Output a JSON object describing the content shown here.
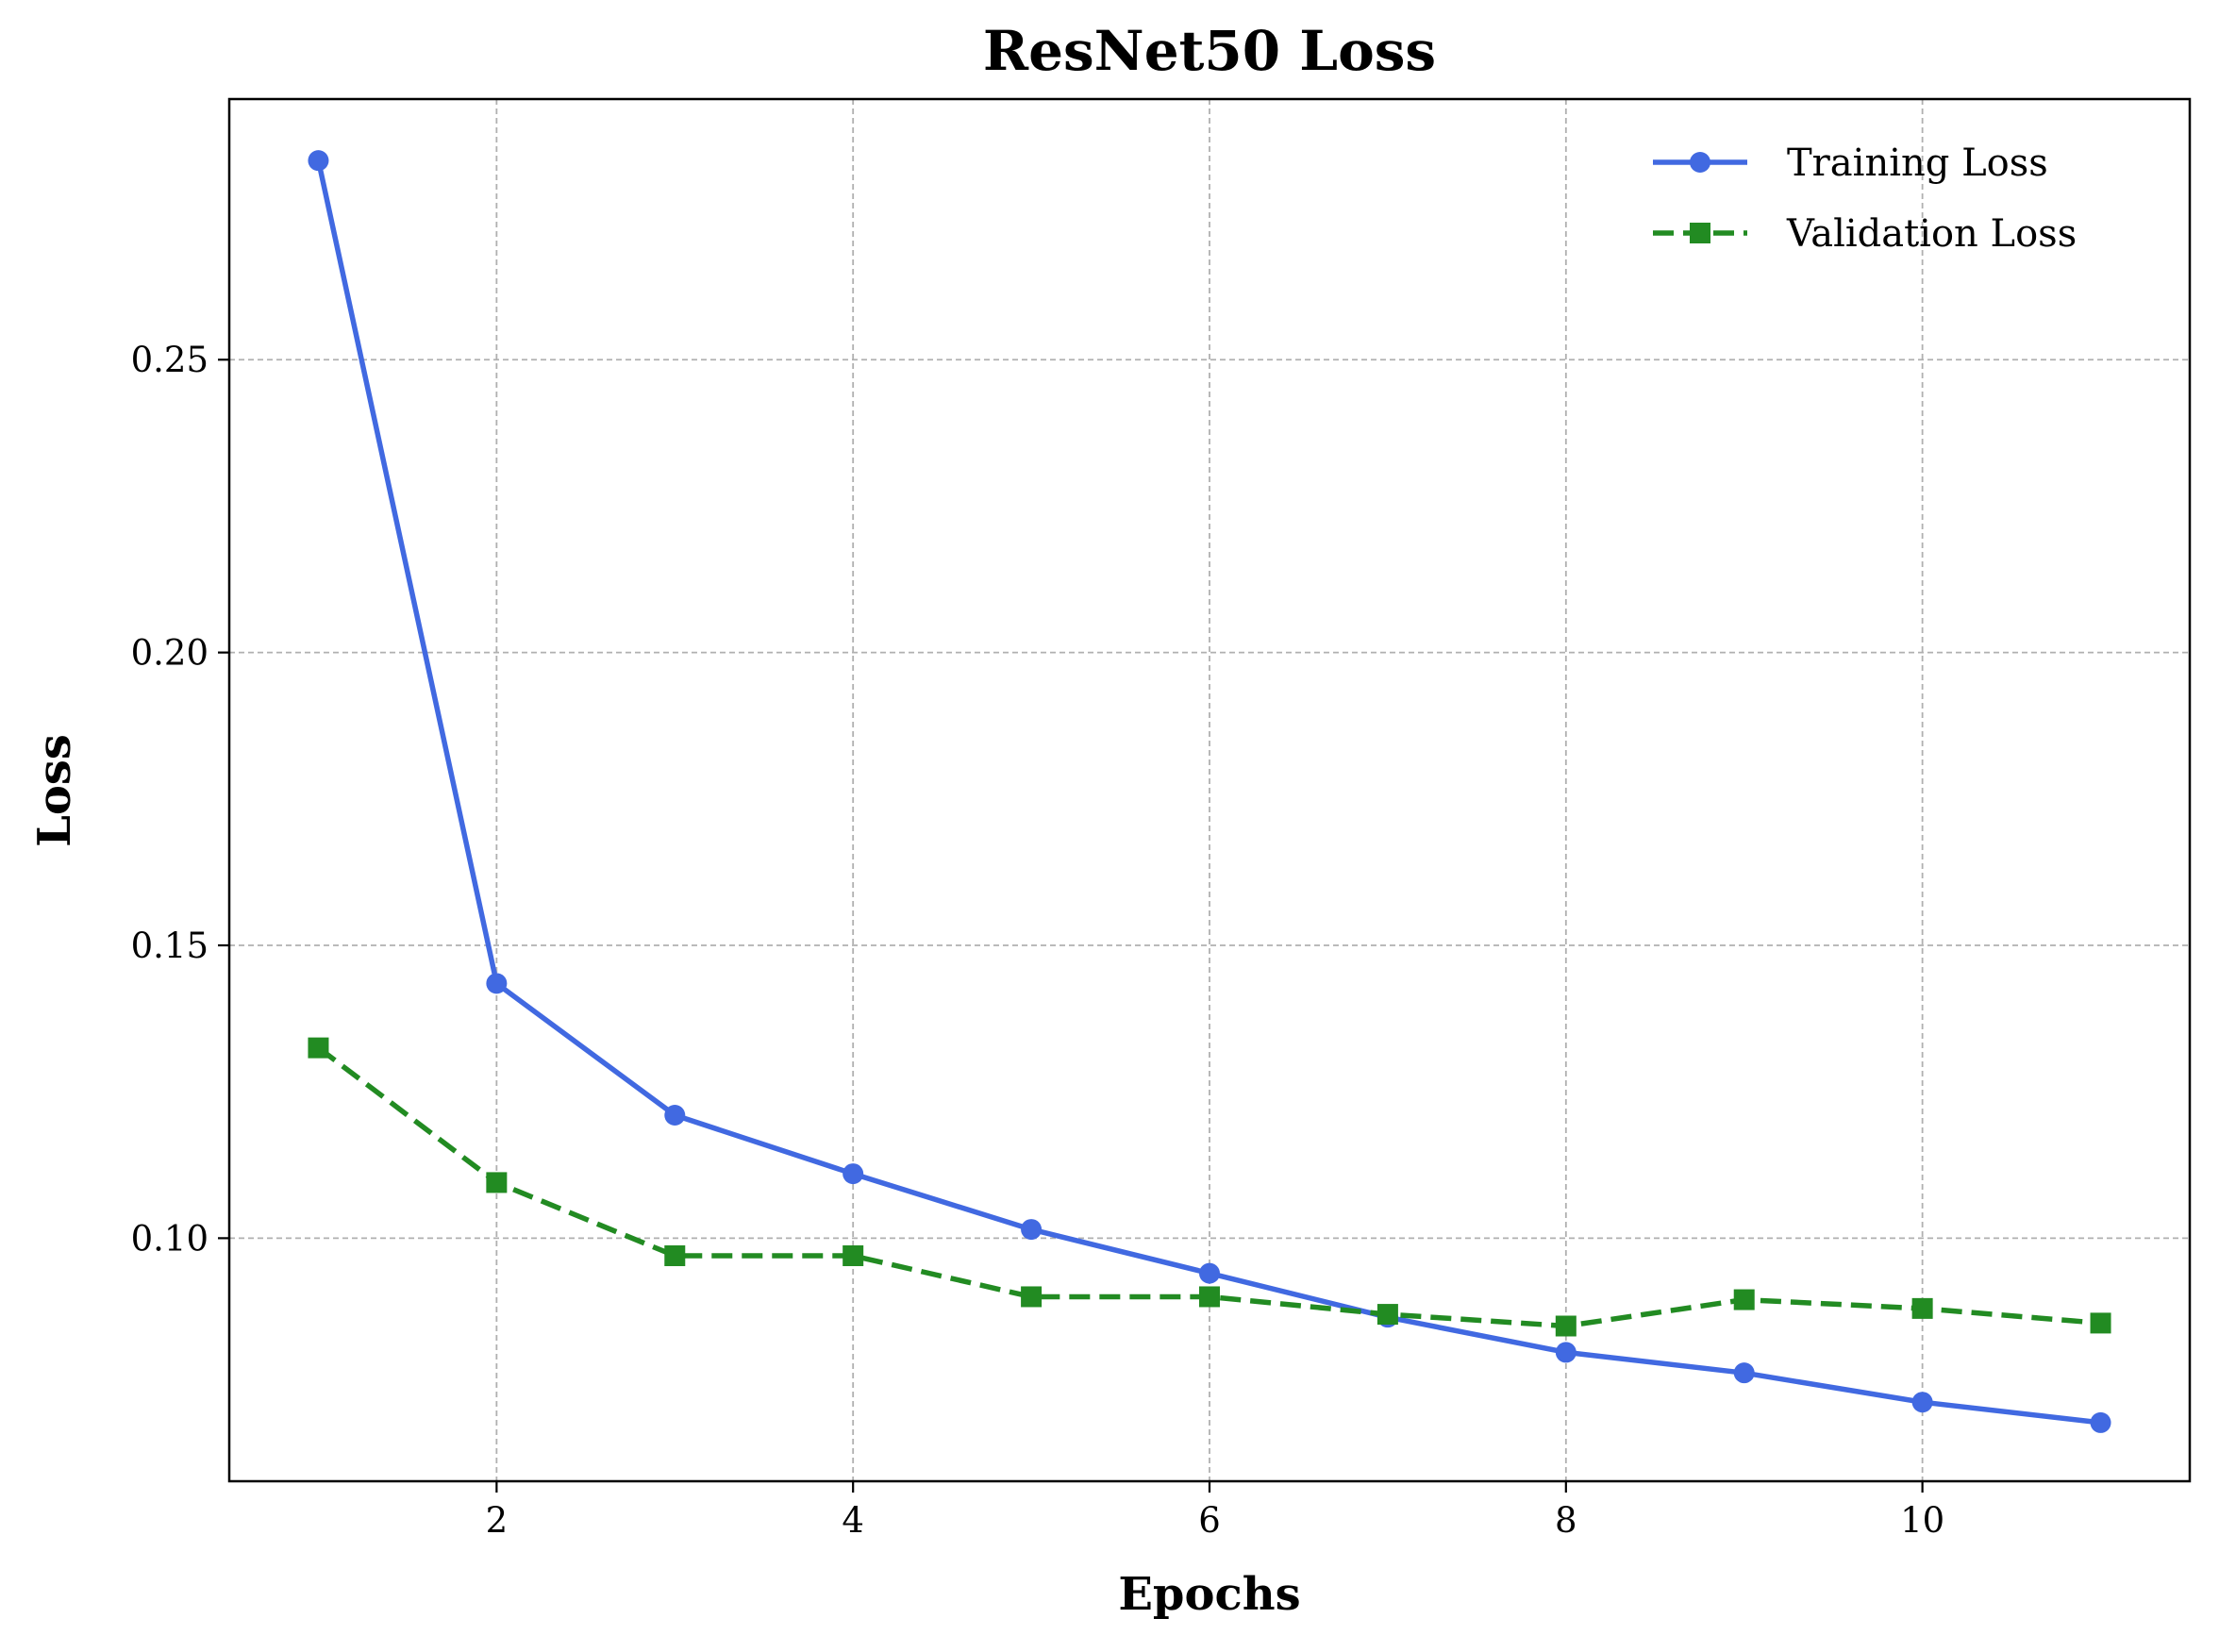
{
  "chart_data": {
    "type": "line",
    "title": "ResNet50 Loss",
    "xlabel": "Epochs",
    "ylabel": "Loss",
    "x": [
      1,
      2,
      3,
      4,
      5,
      6,
      7,
      8,
      9,
      10,
      11
    ],
    "xlim": [
      0.5,
      11.5
    ],
    "ylim": [
      0.0585,
      0.2945
    ],
    "xticks": [
      2,
      4,
      6,
      8,
      10
    ],
    "yticks": [
      0.1,
      0.15,
      0.2,
      0.25
    ],
    "xtick_labels": [
      "2",
      "4",
      "6",
      "8",
      "10"
    ],
    "ytick_labels": [
      "0.10",
      "0.15",
      "0.20",
      "0.25"
    ],
    "grid": true,
    "legend_position": "top-right",
    "series": [
      {
        "name": "Training Loss",
        "color": "#4169e1",
        "line_style": "solid",
        "marker": "circle",
        "values": [
          0.284,
          0.1435,
          0.121,
          0.111,
          0.1015,
          0.094,
          0.0865,
          0.0805,
          0.077,
          0.072,
          0.0685
        ]
      },
      {
        "name": "Validation Loss",
        "color": "#228b22",
        "line_style": "dashed",
        "marker": "square",
        "values": [
          0.1325,
          0.1095,
          0.097,
          0.097,
          0.09,
          0.09,
          0.087,
          0.085,
          0.0895,
          0.088,
          0.0855
        ]
      }
    ]
  }
}
